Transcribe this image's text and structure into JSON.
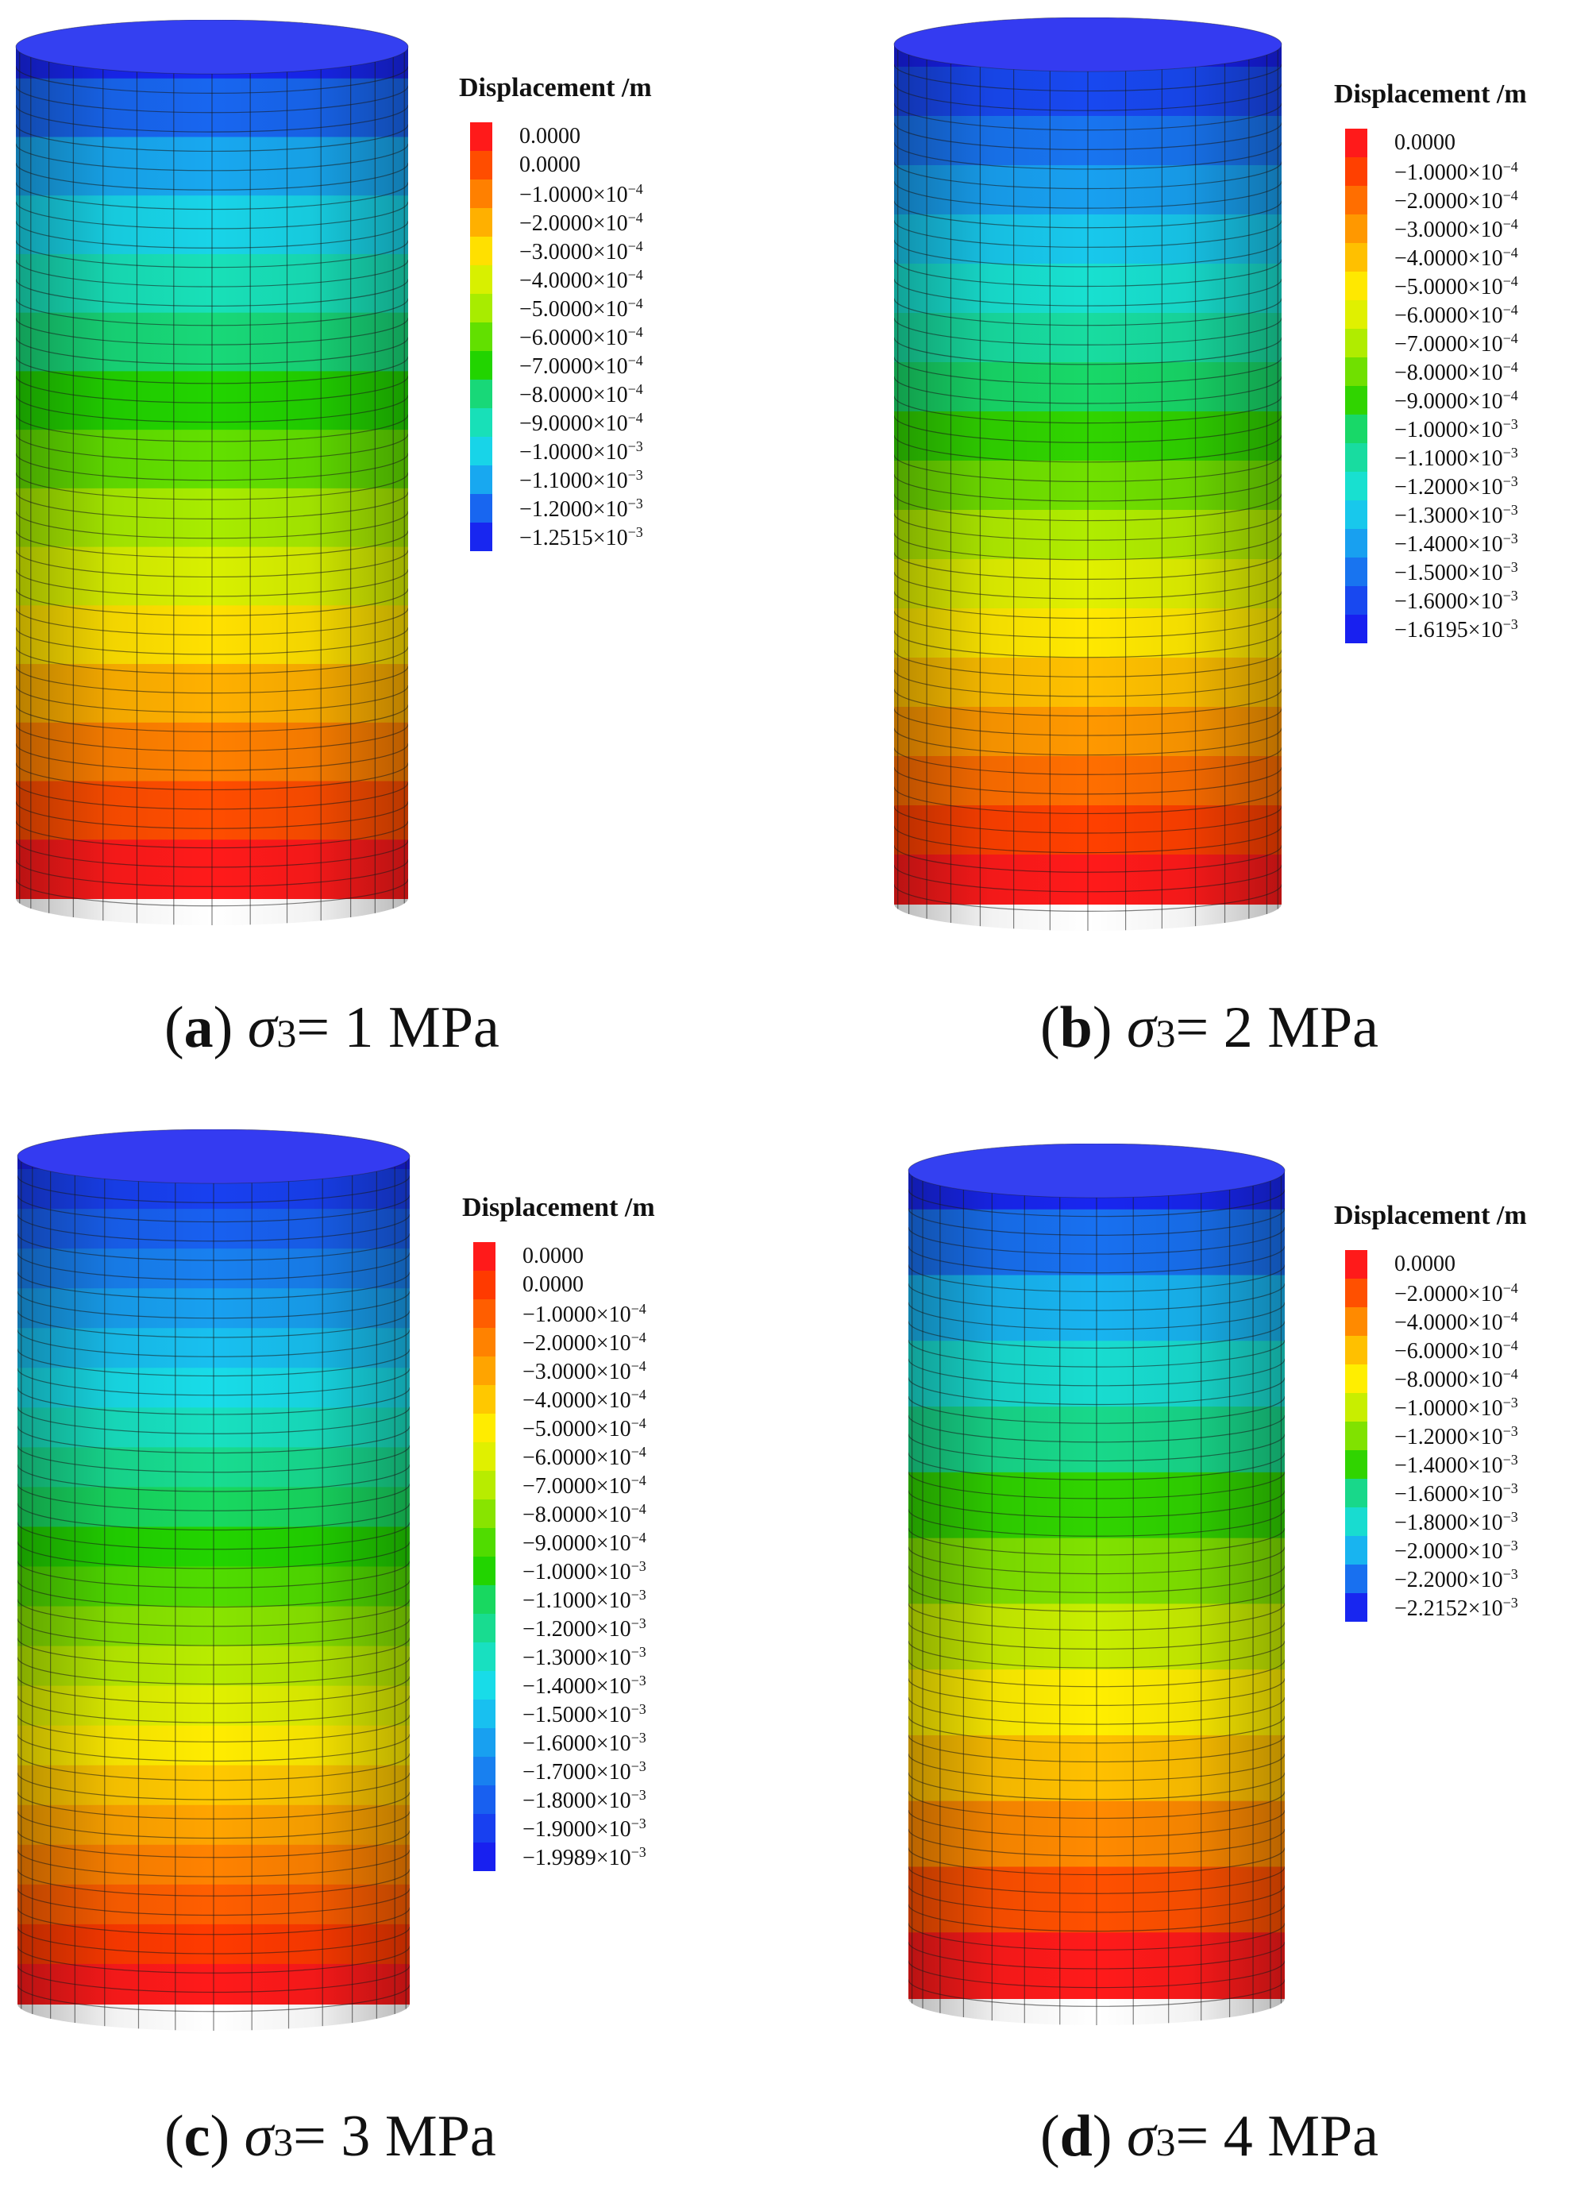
{
  "panels": [
    {
      "id": "a",
      "caption": {
        "open": "(",
        "letter": "a",
        "close": ")",
        "sigma": "σ",
        "sub": "3",
        "rest": "= 1 MPa"
      },
      "legend": {
        "title": "Displacement /m",
        "labels": [
          "0.0000",
          "0.0000",
          "−1.0000×10^−4",
          "−2.0000×10^−4",
          "−3.0000×10^−4",
          "−4.0000×10^−4",
          "−5.0000×10^−4",
          "−6.0000×10^−4",
          "−7.0000×10^−4",
          "−8.0000×10^−4",
          "−9.0000×10^−4",
          "−1.0000×10^−3",
          "−1.1000×10^−3",
          "−1.2000×10^−3",
          "−1.2515×10^−3"
        ],
        "colors": [
          "#ff1a1a",
          "#ff4d00",
          "#ff8000",
          "#ffb000",
          "#ffe000",
          "#d8f000",
          "#a8ec00",
          "#62e000",
          "#22d400",
          "#18d878",
          "#18e0b8",
          "#18d4e8",
          "#18a8f0",
          "#1866f0",
          "#1826f0"
        ]
      }
    },
    {
      "id": "b",
      "caption": {
        "open": "(",
        "letter": "b",
        "close": ")",
        "sigma": "σ",
        "sub": "3",
        "rest": "= 2 MPa"
      },
      "legend": {
        "title": "Displacement /m",
        "labels": [
          "0.0000",
          "−1.0000×10^−4",
          "−2.0000×10^−4",
          "−3.0000×10^−4",
          "−4.0000×10^−4",
          "−5.0000×10^−4",
          "−6.0000×10^−4",
          "−7.0000×10^−4",
          "−8.0000×10^−4",
          "−9.0000×10^−4",
          "−1.0000×10^−3",
          "−1.1000×10^−3",
          "−1.2000×10^−3",
          "−1.3000×10^−3",
          "−1.4000×10^−3",
          "−1.5000×10^−3",
          "−1.6000×10^−3",
          "−1.6195×10^−3"
        ],
        "colors": [
          "#ff1a1a",
          "#ff4000",
          "#ff6e00",
          "#ff9800",
          "#ffc000",
          "#ffe800",
          "#e0f000",
          "#b0ec00",
          "#70e000",
          "#30d400",
          "#18d868",
          "#18dca0",
          "#18e0d0",
          "#18c8ec",
          "#18a0f0",
          "#1874f0",
          "#1848f0",
          "#1820f0"
        ]
      }
    },
    {
      "id": "c",
      "caption": {
        "open": "(",
        "letter": "c",
        "close": ")",
        "sigma": "σ",
        "sub": "3",
        "rest": "= 3 MPa"
      },
      "legend": {
        "title": "Displacement /m",
        "labels": [
          "0.0000",
          "0.0000",
          "−1.0000×10^−4",
          "−2.0000×10^−4",
          "−3.0000×10^−4",
          "−4.0000×10^−4",
          "−5.0000×10^−4",
          "−6.0000×10^−4",
          "−7.0000×10^−4",
          "−8.0000×10^−4",
          "−9.0000×10^−4",
          "−1.0000×10^−3",
          "−1.1000×10^−3",
          "−1.2000×10^−3",
          "−1.3000×10^−3",
          "−1.4000×10^−3",
          "−1.5000×10^−3",
          "−1.6000×10^−3",
          "−1.7000×10^−3",
          "−1.8000×10^−3",
          "−1.9000×10^−3",
          "−1.9989×10^−3"
        ],
        "colors": [
          "#ff1a1a",
          "#ff3a00",
          "#ff5e00",
          "#ff8200",
          "#ffa400",
          "#ffc800",
          "#ffec00",
          "#e0f000",
          "#b8ec00",
          "#88e400",
          "#50dc00",
          "#22d400",
          "#18d860",
          "#18dc90",
          "#18e0c0",
          "#18dce8",
          "#18c0f0",
          "#18a0f0",
          "#1880f0",
          "#1860f0",
          "#1840f0",
          "#1820f0"
        ]
      }
    },
    {
      "id": "d",
      "caption": {
        "open": "(",
        "letter": "d",
        "close": ")",
        "sigma": "σ",
        "sub": "3",
        "rest": "= 4 MPa"
      },
      "legend": {
        "title": "Displacement /m",
        "labels": [
          "0.0000",
          "−2.0000×10^−4",
          "−4.0000×10^−4",
          "−6.0000×10^−4",
          "−8.0000×10^−4",
          "−1.0000×10^−3",
          "−1.2000×10^−3",
          "−1.4000×10^−3",
          "−1.6000×10^−3",
          "−1.8000×10^−3",
          "−2.0000×10^−3",
          "−2.2000×10^−3",
          "−2.2152×10^−3"
        ],
        "colors": [
          "#ff1a1a",
          "#ff5000",
          "#ff8a00",
          "#ffc000",
          "#ffee00",
          "#c8ee00",
          "#80e200",
          "#30d400",
          "#18d88a",
          "#18dcd0",
          "#18b4f0",
          "#1870f0",
          "#1826f0"
        ]
      }
    }
  ]
}
